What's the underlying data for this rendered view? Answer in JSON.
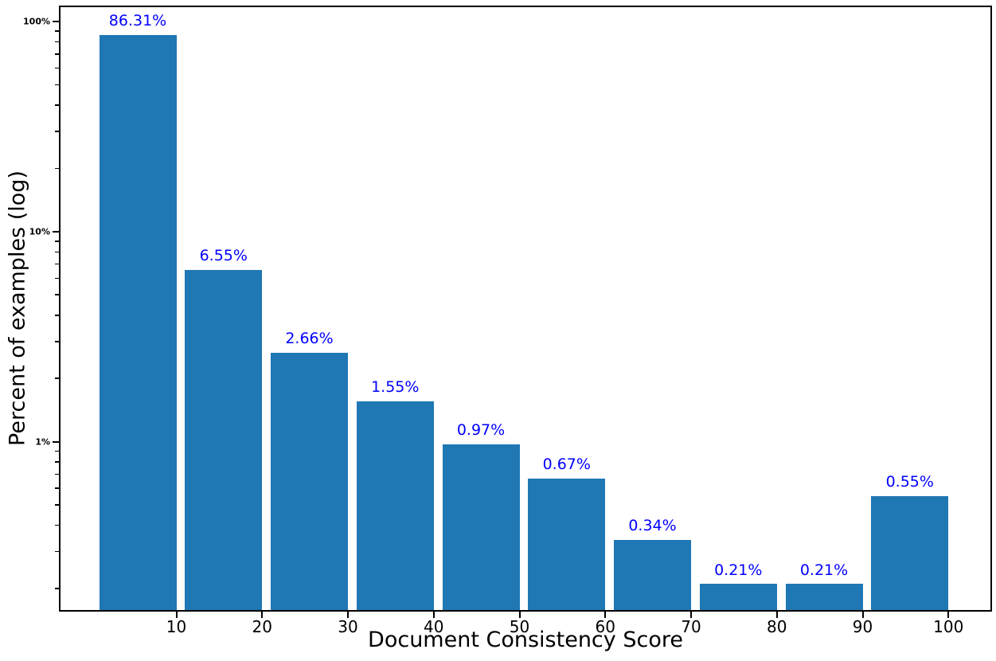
{
  "chart_data": {
    "type": "bar",
    "title": "",
    "xlabel": "Document Consistency Score",
    "ylabel": "Percent of examples (log)",
    "y_scale": "log",
    "grid": false,
    "legend": null,
    "bar_color": "#1f77b4",
    "label_color": "#0000ff",
    "axis_color": "#000000",
    "background_color": "#ffffff",
    "xlim": [
      -3.69,
      105.08
    ],
    "ylim": [
      0.1554,
      119.0
    ],
    "x_ticks": [
      10,
      20,
      30,
      40,
      50,
      60,
      70,
      80,
      90,
      100
    ],
    "y_ticks": [
      {
        "value": 100,
        "label": "100%"
      },
      {
        "value": 10,
        "label": "10%"
      },
      {
        "value": 1,
        "label": "1%"
      }
    ],
    "categories": [
      "1-10",
      "11-20",
      "21-30",
      "31-40",
      "41-50",
      "51-60",
      "61-70",
      "71-80",
      "81-90",
      "91-100"
    ],
    "values": [
      86.31,
      6.55,
      2.66,
      1.55,
      0.97,
      0.67,
      0.34,
      0.21,
      0.21,
      0.55
    ],
    "bars": [
      {
        "x_start": 1,
        "x_end": 10,
        "value": 86.31,
        "label": "86.31%"
      },
      {
        "x_start": 11,
        "x_end": 20,
        "value": 6.55,
        "label": "6.55%"
      },
      {
        "x_start": 21,
        "x_end": 30,
        "value": 2.66,
        "label": "2.66%"
      },
      {
        "x_start": 31,
        "x_end": 40,
        "value": 1.55,
        "label": "1.55%"
      },
      {
        "x_start": 41,
        "x_end": 50,
        "value": 0.97,
        "label": "0.97%"
      },
      {
        "x_start": 51,
        "x_end": 60,
        "value": 0.67,
        "label": "0.67%"
      },
      {
        "x_start": 61,
        "x_end": 70,
        "value": 0.34,
        "label": "0.34%"
      },
      {
        "x_start": 71,
        "x_end": 80,
        "value": 0.21,
        "label": "0.21%"
      },
      {
        "x_start": 81,
        "x_end": 90,
        "value": 0.21,
        "label": "0.21%"
      },
      {
        "x_start": 91,
        "x_end": 100,
        "value": 0.55,
        "label": "0.55%"
      }
    ]
  }
}
